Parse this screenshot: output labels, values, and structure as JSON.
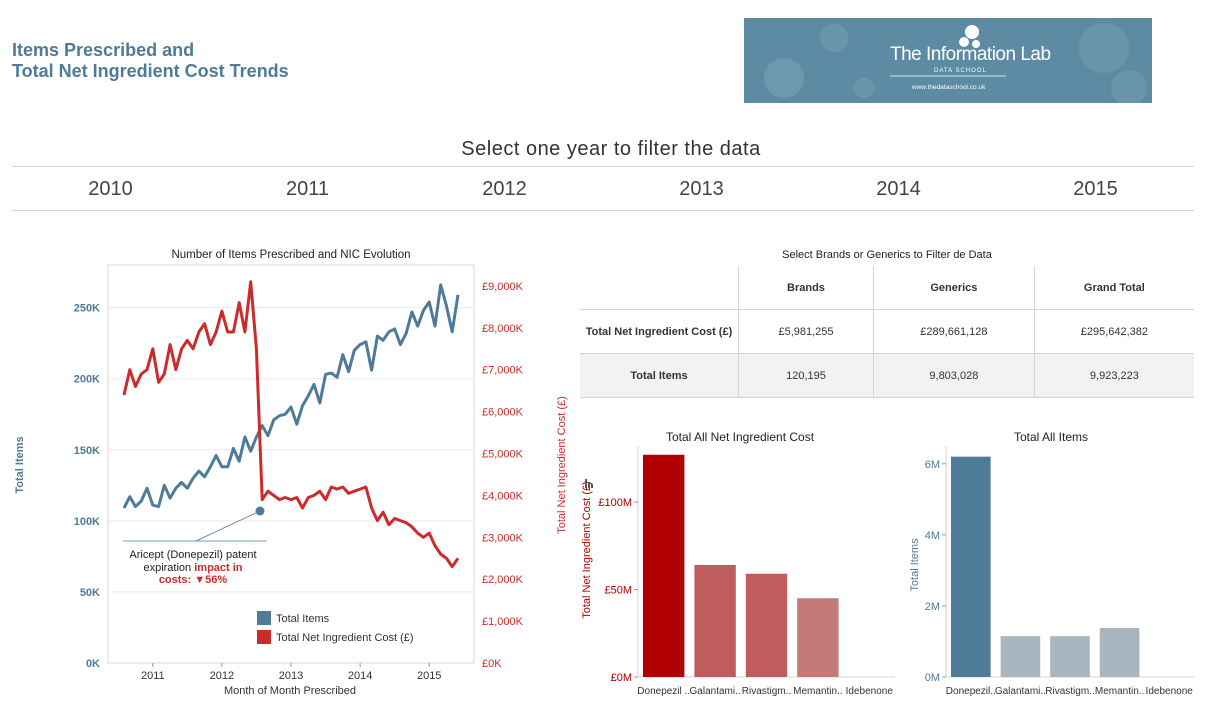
{
  "header": {
    "title_line1": "Items Prescribed and",
    "title_line2": "Total Net Ingredient Cost Trends",
    "logo_text": "The Information Lab",
    "logo_sub": "DATA SCHOOL",
    "logo_url": "www.thedataschool.co.uk"
  },
  "filter": {
    "heading": "Select one year to filter the data",
    "years": [
      "2010",
      "2011",
      "2012",
      "2013",
      "2014",
      "2015"
    ]
  },
  "summary_table": {
    "title": "Select Brands or Generics to Filter de Data",
    "columns": [
      "Brands",
      "Generics",
      "Grand Total"
    ],
    "rows": [
      {
        "label": "Total Net Ingredient Cost (£)",
        "values": [
          "£5,981,255",
          "£289,661,128",
          "£295,642,382"
        ]
      },
      {
        "label": "Total Items",
        "values": [
          "120,195",
          "9,803,028",
          "9,923,223"
        ]
      }
    ]
  },
  "colors": {
    "items": "#4e7b98",
    "cost": "#cc2b2b",
    "cost_bar_dark": "#b00000",
    "cost_bar_mid": "#bf5c5c",
    "cost_bar_light": "#c27a7a",
    "items_bar_grey": "#aab6bf"
  },
  "chart_data": [
    {
      "type": "line",
      "title": "Number of Items Prescribed and NIC Evolution",
      "xlabel": "Month of Month Prescribed",
      "ylabel": "Total Items",
      "ylabel_right": "Total Net Ingredient Cost (£)",
      "x_ticks": [
        "2011",
        "2012",
        "2013",
        "2014",
        "2015"
      ],
      "y_ticks": [
        "0K",
        "50K",
        "100K",
        "150K",
        "200K",
        "250K"
      ],
      "y2_ticks": [
        "£0K",
        "£1,000K",
        "£2,000K",
        "£3,000K",
        "£4,000K",
        "£5,000K",
        "£6,000K",
        "£7,000K",
        "£8,000K",
        "£9,000K"
      ],
      "ylim": [
        0,
        280000
      ],
      "y2lim": [
        0,
        9500000
      ],
      "x_start": "2010-08",
      "series": [
        {
          "name": "Total Items",
          "axis": "left",
          "values": [
            109000,
            117000,
            110000,
            114000,
            123000,
            111000,
            110000,
            125000,
            116000,
            123000,
            127000,
            123000,
            130000,
            135000,
            131000,
            138000,
            146000,
            138000,
            138000,
            151000,
            142000,
            159000,
            149000,
            159000,
            167000,
            160000,
            171000,
            174000,
            175000,
            180000,
            168000,
            181000,
            188000,
            196000,
            183000,
            203000,
            204000,
            201000,
            217000,
            205000,
            220000,
            224000,
            226000,
            206000,
            230000,
            227000,
            233000,
            235000,
            224000,
            232000,
            247000,
            237000,
            248000,
            254000,
            237000,
            266000,
            251000,
            233000,
            259000
          ]
        },
        {
          "name": "Total Net Ingredient Cost (£)",
          "axis": "right",
          "values": [
            6400000,
            7000000,
            6600000,
            6900000,
            7000000,
            7500000,
            6700000,
            6900000,
            7600000,
            7000000,
            7500000,
            7700000,
            7500000,
            7900000,
            8100000,
            7600000,
            7900000,
            8400000,
            7900000,
            7900000,
            8600000,
            7900000,
            9100000,
            7500000,
            3900000,
            4100000,
            4000000,
            3900000,
            3950000,
            3900000,
            3950000,
            3700000,
            3950000,
            4000000,
            4100000,
            3900000,
            4200000,
            4150000,
            4200000,
            4050000,
            4100000,
            4150000,
            4200000,
            3700000,
            3400000,
            3600000,
            3300000,
            3450000,
            3400000,
            3350000,
            3250000,
            3100000,
            3000000,
            3100000,
            2800000,
            2600000,
            2500000,
            2300000,
            2500000
          ]
        }
      ],
      "annotation": {
        "text_line1": "Aricept (Donepezil) patent",
        "text_line2": "expiration",
        "text_red": "impact in",
        "text_line3": "costs:",
        "text_pct": "▼56%"
      }
    },
    {
      "type": "bar",
      "title": "Total All Net Ingredient Cost",
      "ylabel": "Total Net Ingredient Cost (£)",
      "categories": [
        "Donepezil ..",
        "Galantami..",
        "Rivastigm..",
        "Memantin..",
        "Idebenone"
      ],
      "values": [
        127000000,
        64000000,
        59000000,
        45000000,
        0
      ],
      "y_ticks": [
        "£0M",
        "£50M",
        "£100M"
      ],
      "ylim": [
        0,
        132000000
      ]
    },
    {
      "type": "bar",
      "title": "Total All Items",
      "ylabel": "Total Items",
      "categories": [
        "Donepezil..",
        "Galantami..",
        "Rivastigm..",
        "Memantin..",
        "Idebenone"
      ],
      "values": [
        6200000,
        1150000,
        1150000,
        1380000,
        0
      ],
      "y_ticks": [
        "0M",
        "2M",
        "4M",
        "6M"
      ],
      "ylim": [
        0,
        6500000
      ]
    }
  ]
}
